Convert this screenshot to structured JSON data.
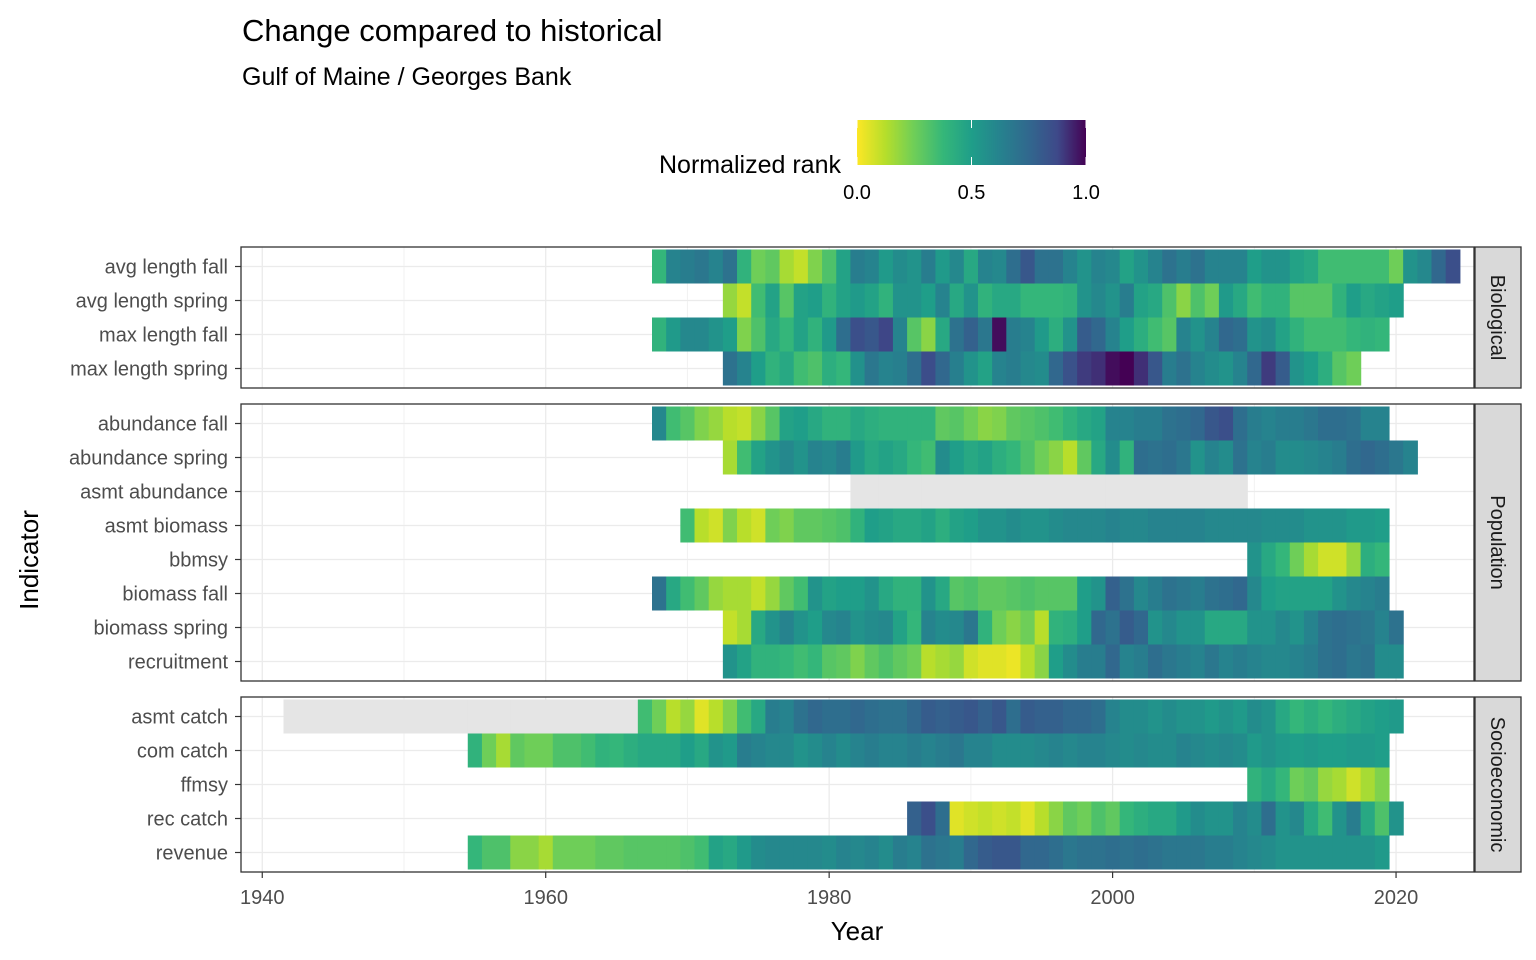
{
  "chart_data": {
    "type": "heatmap",
    "title": "Change compared to historical",
    "subtitle": "Gulf of Maine / Georges Bank",
    "xlabel": "Year",
    "ylabel": "Indicator",
    "xlim": [
      1938.5,
      2025.5
    ],
    "x_ticks": [
      1940,
      1960,
      1980,
      2000,
      2020
    ],
    "grid": true,
    "legend": {
      "title": "Normalized rank",
      "position": "top",
      "ticks": [
        "0.0",
        "0.5",
        "1.0"
      ],
      "colors": [
        "#fde725",
        "#5ec962",
        "#21918c",
        "#3b528b",
        "#440154"
      ]
    },
    "na_color": "#e5e5e5",
    "panels": [
      {
        "name": "Biological",
        "rows": [
          {
            "indicator": "max length spring",
            "start": 1973,
            "values": [
              0.7,
              0.62,
              0.5,
              0.4,
              0.45,
              0.35,
              0.32,
              0.42,
              0.38,
              0.56,
              0.68,
              0.62,
              0.64,
              0.72,
              0.86,
              0.75,
              0.64,
              0.55,
              0.48,
              0.62,
              0.65,
              0.6,
              0.58,
              0.75,
              0.84,
              0.9,
              0.92,
              0.98,
              1.0,
              0.92,
              0.82,
              0.65,
              0.7,
              0.62,
              0.58,
              0.55,
              0.62,
              0.75,
              0.9,
              0.8,
              0.55,
              0.5,
              0.42,
              0.3,
              0.25
            ]
          },
          {
            "indicator": "max length fall",
            "start": 1968,
            "values": [
              0.4,
              0.52,
              0.6,
              0.6,
              0.55,
              0.5,
              0.22,
              0.32,
              0.45,
              0.38,
              0.48,
              0.4,
              0.52,
              0.72,
              0.85,
              0.82,
              0.88,
              0.62,
              0.3,
              0.2,
              0.45,
              0.7,
              0.78,
              0.68,
              0.98,
              0.65,
              0.62,
              0.52,
              0.42,
              0.55,
              0.8,
              0.75,
              0.62,
              0.5,
              0.42,
              0.35,
              0.3,
              0.62,
              0.55,
              0.62,
              0.75,
              0.72,
              0.55,
              0.58,
              0.48,
              0.4,
              0.35,
              0.35,
              0.35,
              0.38,
              0.4,
              0.38
            ]
          },
          {
            "indicator": "avg length spring",
            "start": 1973,
            "values": [
              0.18,
              0.1,
              0.35,
              0.48,
              0.3,
              0.48,
              0.5,
              0.4,
              0.48,
              0.52,
              0.48,
              0.4,
              0.55,
              0.55,
              0.5,
              0.62,
              0.45,
              0.55,
              0.4,
              0.45,
              0.45,
              0.38,
              0.38,
              0.38,
              0.4,
              0.55,
              0.6,
              0.55,
              0.65,
              0.48,
              0.45,
              0.32,
              0.2,
              0.32,
              0.25,
              0.52,
              0.45,
              0.35,
              0.4,
              0.4,
              0.3,
              0.3,
              0.3,
              0.4,
              0.5,
              0.45,
              0.48,
              0.5
            ]
          },
          {
            "indicator": "avg length fall",
            "start": 1968,
            "values": [
              0.38,
              0.62,
              0.65,
              0.68,
              0.62,
              0.7,
              0.4,
              0.25,
              0.28,
              0.15,
              0.1,
              0.22,
              0.32,
              0.48,
              0.65,
              0.62,
              0.52,
              0.58,
              0.55,
              0.65,
              0.52,
              0.6,
              0.45,
              0.62,
              0.6,
              0.72,
              0.82,
              0.7,
              0.7,
              0.62,
              0.55,
              0.62,
              0.6,
              0.48,
              0.55,
              0.62,
              0.7,
              0.65,
              0.7,
              0.62,
              0.62,
              0.62,
              0.5,
              0.55,
              0.55,
              0.48,
              0.45,
              0.35,
              0.35,
              0.35,
              0.35,
              0.35,
              0.25,
              0.55,
              0.6,
              0.75,
              0.85
            ]
          }
        ]
      },
      {
        "name": "Population",
        "rows": [
          {
            "indicator": "recruitment",
            "start": 1973,
            "values": [
              0.55,
              0.48,
              0.4,
              0.4,
              0.38,
              0.35,
              0.38,
              0.3,
              0.28,
              0.22,
              0.28,
              0.32,
              0.28,
              0.25,
              0.12,
              0.15,
              0.18,
              0.08,
              0.05,
              0.05,
              0.03,
              0.12,
              0.2,
              0.5,
              0.58,
              0.65,
              0.65,
              0.75,
              0.62,
              0.65,
              0.72,
              0.68,
              0.65,
              0.62,
              0.68,
              0.62,
              0.65,
              0.62,
              0.6,
              0.6,
              0.62,
              0.65,
              0.7,
              0.72,
              0.68,
              0.7,
              0.58,
              0.58
            ]
          },
          {
            "indicator": "biomass spring",
            "start": 1973,
            "values": [
              0.1,
              0.15,
              0.45,
              0.55,
              0.62,
              0.55,
              0.5,
              0.6,
              0.62,
              0.55,
              0.58,
              0.6,
              0.48,
              0.38,
              0.62,
              0.58,
              0.6,
              0.68,
              0.4,
              0.25,
              0.2,
              0.25,
              0.12,
              0.4,
              0.42,
              0.5,
              0.75,
              0.7,
              0.8,
              0.75,
              0.55,
              0.6,
              0.55,
              0.55,
              0.45,
              0.45,
              0.45,
              0.55,
              0.55,
              0.6,
              0.55,
              0.62,
              0.7,
              0.72,
              0.7,
              0.68,
              0.62,
              0.7
            ]
          },
          {
            "indicator": "biomass fall",
            "start": 1968,
            "values": [
              0.7,
              0.45,
              0.35,
              0.28,
              0.18,
              0.15,
              0.15,
              0.1,
              0.18,
              0.28,
              0.35,
              0.55,
              0.48,
              0.5,
              0.5,
              0.55,
              0.45,
              0.4,
              0.4,
              0.55,
              0.45,
              0.3,
              0.32,
              0.28,
              0.28,
              0.3,
              0.32,
              0.3,
              0.3,
              0.3,
              0.5,
              0.55,
              0.78,
              0.7,
              0.6,
              0.65,
              0.7,
              0.68,
              0.65,
              0.7,
              0.72,
              0.75,
              0.6,
              0.5,
              0.48,
              0.48,
              0.48,
              0.48,
              0.55,
              0.6,
              0.62,
              0.65
            ]
          },
          {
            "indicator": "bbmsy",
            "start": 2010,
            "values": [
              0.55,
              0.45,
              0.38,
              0.25,
              0.15,
              0.08,
              0.08,
              0.18,
              0.42,
              0.38
            ]
          },
          {
            "indicator": "asmt biomass",
            "start": 1970,
            "values": [
              0.35,
              0.12,
              0.08,
              0.22,
              0.12,
              0.08,
              0.25,
              0.22,
              0.28,
              0.28,
              0.3,
              0.32,
              0.4,
              0.5,
              0.48,
              0.45,
              0.45,
              0.48,
              0.42,
              0.48,
              0.5,
              0.55,
              0.55,
              0.58,
              0.55,
              0.55,
              0.58,
              0.6,
              0.6,
              0.6,
              0.62,
              0.6,
              0.6,
              0.62,
              0.62,
              0.62,
              0.62,
              0.6,
              0.6,
              0.6,
              0.6,
              0.58,
              0.58,
              0.58,
              0.55,
              0.55,
              0.55,
              0.52,
              0.52,
              0.5
            ]
          },
          {
            "indicator": "asmt abundance",
            "start": 1982,
            "values": [
              null,
              null,
              null,
              null,
              null,
              null,
              null,
              null,
              null,
              null,
              null,
              null,
              null,
              null,
              null,
              null,
              null,
              null,
              null,
              null,
              null,
              null,
              null,
              null,
              null,
              null,
              null,
              null
            ]
          },
          {
            "indicator": "abundance spring",
            "start": 1973,
            "values": [
              0.15,
              0.35,
              0.48,
              0.55,
              0.6,
              0.55,
              0.62,
              0.6,
              0.65,
              0.52,
              0.45,
              0.48,
              0.45,
              0.38,
              0.35,
              0.58,
              0.5,
              0.45,
              0.48,
              0.42,
              0.38,
              0.32,
              0.25,
              0.2,
              0.12,
              0.28,
              0.45,
              0.58,
              0.4,
              0.72,
              0.7,
              0.72,
              0.68,
              0.55,
              0.62,
              0.58,
              0.7,
              0.62,
              0.65,
              0.58,
              0.58,
              0.6,
              0.62,
              0.65,
              0.72,
              0.75,
              0.72,
              0.68,
              0.62
            ]
          },
          {
            "indicator": "abundance fall",
            "start": 1968,
            "values": [
              0.6,
              0.35,
              0.3,
              0.22,
              0.18,
              0.12,
              0.1,
              0.2,
              0.3,
              0.48,
              0.5,
              0.45,
              0.4,
              0.4,
              0.45,
              0.42,
              0.4,
              0.4,
              0.4,
              0.4,
              0.28,
              0.3,
              0.25,
              0.2,
              0.22,
              0.28,
              0.3,
              0.32,
              0.35,
              0.4,
              0.45,
              0.48,
              0.62,
              0.62,
              0.65,
              0.65,
              0.7,
              0.72,
              0.75,
              0.82,
              0.85,
              0.72,
              0.65,
              0.62,
              0.65,
              0.65,
              0.68,
              0.72,
              0.72,
              0.7,
              0.62,
              0.62
            ]
          }
        ]
      },
      {
        "name": "Socioeconomic",
        "rows": [
          {
            "indicator": "revenue",
            "start": 1955,
            "values": [
              0.38,
              0.32,
              0.32,
              0.2,
              0.2,
              0.15,
              0.25,
              0.25,
              0.25,
              0.28,
              0.28,
              0.3,
              0.3,
              0.3,
              0.3,
              0.32,
              0.35,
              0.48,
              0.45,
              0.52,
              0.58,
              0.6,
              0.6,
              0.6,
              0.6,
              0.58,
              0.62,
              0.6,
              0.62,
              0.58,
              0.65,
              0.62,
              0.7,
              0.68,
              0.65,
              0.75,
              0.8,
              0.82,
              0.82,
              0.75,
              0.75,
              0.72,
              0.68,
              0.7,
              0.7,
              0.72,
              0.7,
              0.72,
              0.7,
              0.68,
              0.68,
              0.68,
              0.65,
              0.65,
              0.62,
              0.6,
              0.58,
              0.55,
              0.55,
              0.55,
              0.55,
              0.55,
              0.55,
              0.55,
              0.52
            ]
          },
          {
            "indicator": "rec catch",
            "start": 1986,
            "values": [
              0.78,
              0.85,
              0.72,
              0.05,
              0.08,
              0.1,
              0.08,
              0.1,
              0.05,
              0.12,
              0.2,
              0.28,
              0.25,
              0.32,
              0.28,
              0.38,
              0.42,
              0.45,
              0.45,
              0.52,
              0.58,
              0.55,
              0.55,
              0.62,
              0.58,
              0.72,
              0.55,
              0.6,
              0.45,
              0.35,
              0.55,
              0.65,
              0.45,
              0.32,
              0.55
            ]
          },
          {
            "indicator": "ffmsy",
            "start": 2010,
            "values": [
              0.4,
              0.45,
              0.38,
              0.25,
              0.28,
              0.18,
              0.15,
              0.08,
              0.15,
              0.22
            ]
          },
          {
            "indicator": "com catch",
            "start": 1955,
            "values": [
              0.4,
              0.25,
              0.15,
              0.28,
              0.25,
              0.25,
              0.32,
              0.32,
              0.35,
              0.4,
              0.38,
              0.42,
              0.45,
              0.45,
              0.45,
              0.5,
              0.45,
              0.55,
              0.52,
              0.65,
              0.62,
              0.6,
              0.6,
              0.55,
              0.58,
              0.62,
              0.58,
              0.62,
              0.65,
              0.62,
              0.62,
              0.65,
              0.62,
              0.65,
              0.68,
              0.62,
              0.62,
              0.58,
              0.58,
              0.58,
              0.6,
              0.62,
              0.6,
              0.62,
              0.62,
              0.6,
              0.58,
              0.6,
              0.58,
              0.58,
              0.62,
              0.6,
              0.58,
              0.6,
              0.58,
              0.52,
              0.55,
              0.52,
              0.5,
              0.52,
              0.5,
              0.5,
              0.52,
              0.52,
              0.5
            ]
          },
          {
            "indicator": "asmt catch",
            "start": 1942,
            "values": [
              null,
              null,
              null,
              null,
              null,
              null,
              null,
              null,
              null,
              null,
              null,
              null,
              null,
              null,
              null,
              null,
              null,
              null,
              null,
              null,
              null,
              null,
              null,
              null,
              null,
              0.35,
              0.25,
              0.12,
              0.18,
              0.05,
              0.12,
              0.22,
              0.35,
              0.45,
              0.65,
              0.62,
              0.7,
              0.75,
              0.72,
              0.72,
              0.75,
              0.72,
              0.7,
              0.7,
              0.75,
              0.8,
              0.78,
              0.8,
              0.82,
              0.78,
              0.82,
              0.72,
              0.8,
              0.78,
              0.78,
              0.75,
              0.75,
              0.72,
              0.62,
              0.58,
              0.58,
              0.55,
              0.58,
              0.55,
              0.55,
              0.52,
              0.55,
              0.52,
              0.58,
              0.55,
              0.45,
              0.38,
              0.42,
              0.38,
              0.42,
              0.45,
              0.48,
              0.5,
              0.52
            ]
          }
        ]
      }
    ]
  }
}
